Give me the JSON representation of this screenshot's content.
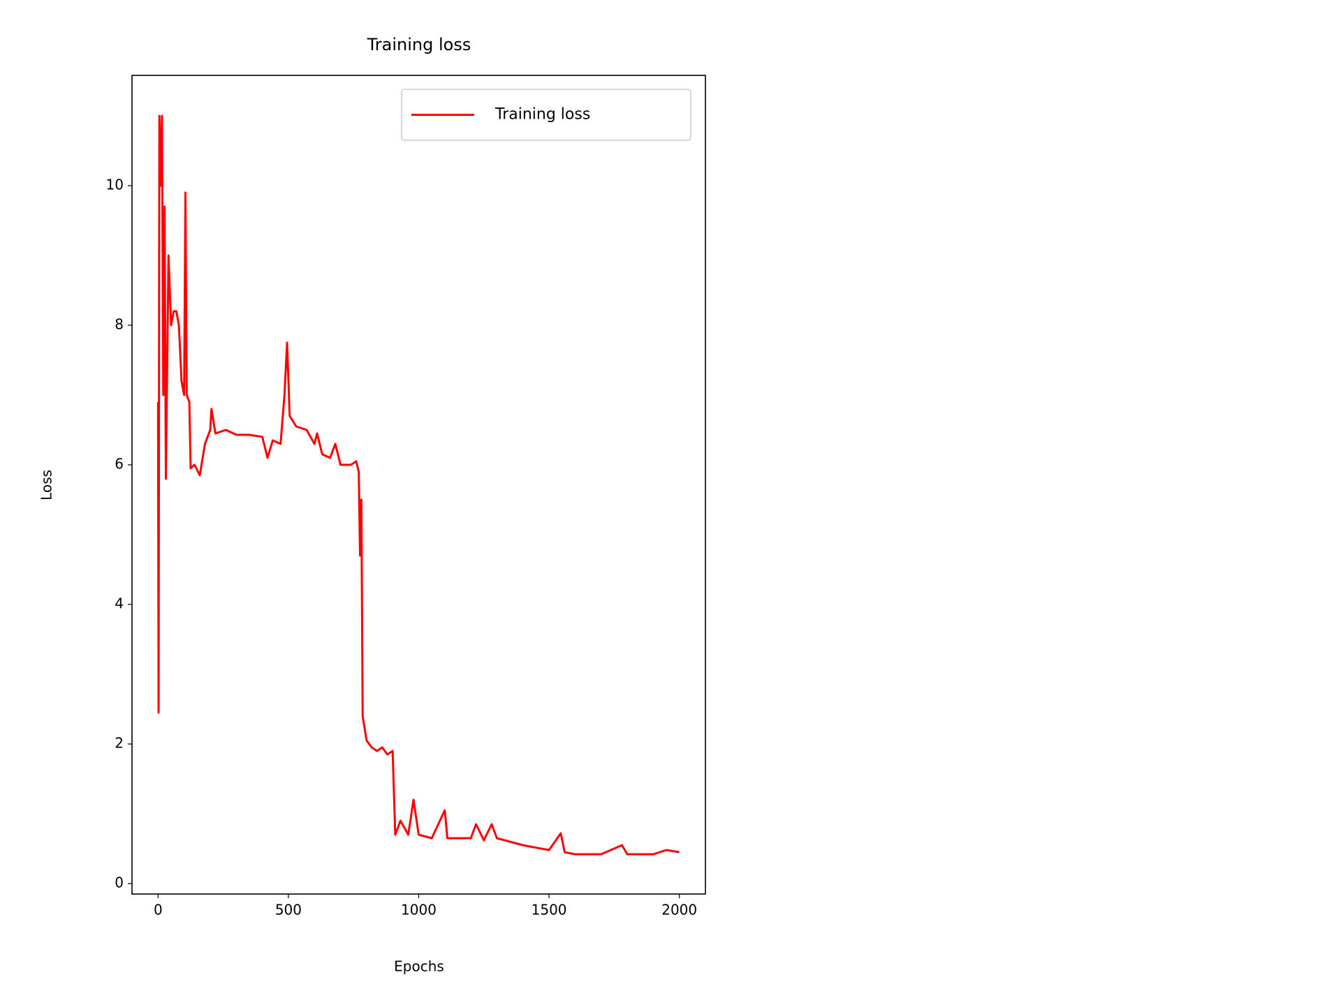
{
  "chart_data": {
    "type": "line",
    "title": "Training loss",
    "x_label": "Epochs",
    "y_label": "Loss",
    "x": [
      0,
      2,
      5,
      10,
      15,
      20,
      25,
      30,
      40,
      50,
      60,
      70,
      80,
      90,
      100,
      105,
      110,
      120,
      125,
      140,
      160,
      180,
      200,
      205,
      220,
      260,
      300,
      350,
      400,
      420,
      440,
      470,
      485,
      495,
      505,
      530,
      570,
      600,
      610,
      630,
      660,
      680,
      700,
      740,
      760,
      770,
      775,
      780,
      785,
      800,
      820,
      840,
      860,
      880,
      900,
      910,
      930,
      960,
      980,
      1000,
      1050,
      1100,
      1110,
      1200,
      1220,
      1250,
      1280,
      1300,
      1400,
      1500,
      1545,
      1560,
      1600,
      1700,
      1780,
      1800,
      1900,
      1950,
      2000
    ],
    "series": [
      {
        "name": "Training loss",
        "color": "#ff0000",
        "values": [
          6.9,
          2.45,
          11.0,
          10.0,
          11.0,
          7.0,
          9.7,
          5.8,
          9.0,
          8.0,
          8.2,
          8.2,
          8.0,
          7.2,
          7.0,
          9.9,
          7.0,
          6.9,
          5.95,
          6.0,
          5.85,
          6.3,
          6.5,
          6.8,
          6.45,
          6.5,
          6.43,
          6.43,
          6.4,
          6.1,
          6.35,
          6.3,
          7.0,
          7.75,
          6.7,
          6.55,
          6.5,
          6.3,
          6.45,
          6.15,
          6.1,
          6.3,
          6.0,
          6.0,
          6.05,
          5.9,
          4.7,
          5.5,
          2.4,
          2.05,
          1.95,
          1.9,
          1.95,
          1.85,
          1.9,
          0.7,
          0.9,
          0.7,
          1.2,
          0.7,
          0.65,
          1.05,
          0.65,
          0.65,
          0.85,
          0.62,
          0.85,
          0.65,
          0.55,
          0.48,
          0.72,
          0.45,
          0.42,
          0.42,
          0.55,
          0.42,
          0.42,
          0.48,
          0.45
        ]
      }
    ],
    "xlim": [
      -100,
      2100
    ],
    "xticks": [
      0,
      500,
      1000,
      1500,
      2000
    ],
    "ylim": [
      -0.15,
      11.58
    ],
    "yticks": [
      0,
      2,
      4,
      6,
      8,
      10
    ],
    "legend": "upper right"
  }
}
